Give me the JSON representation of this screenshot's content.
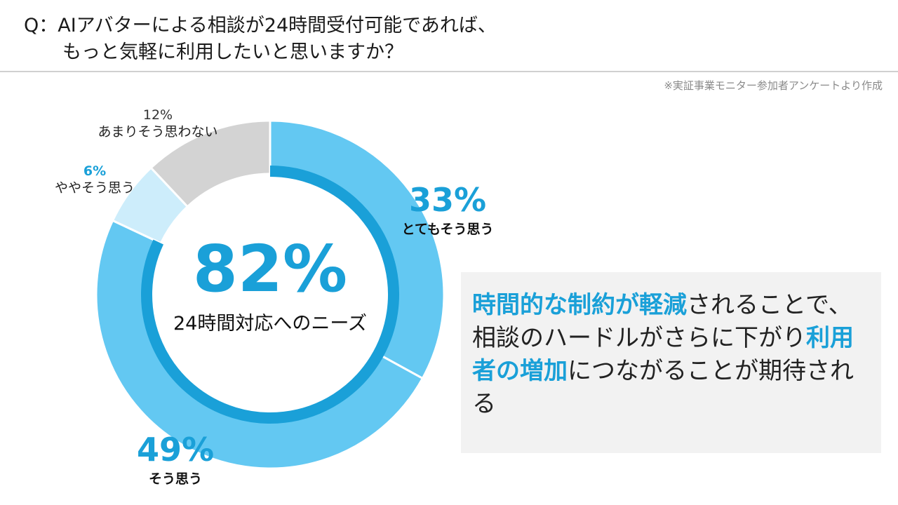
{
  "question": {
    "line1": "Q：AIアバターによる相談が24時間受付可能であれば、",
    "line2": "もっと気軽に利用したいと思いますか？"
  },
  "source_note": "※実証事業モニター参加者アンケートより作成",
  "chart_data": {
    "type": "pie",
    "style": "donut",
    "slices": [
      {
        "label": "とてもそう思う",
        "value": 33,
        "value_text": "33%",
        "color": "#63c8f2"
      },
      {
        "label": "そう思う",
        "value": 49,
        "value_text": "49%",
        "color": "#63c8f2"
      },
      {
        "label": "ややそう思う",
        "value": 6,
        "value_text": "6%",
        "color": "#cdedfb"
      },
      {
        "label": "あまりそう思わない",
        "value": 12,
        "value_text": "12%",
        "color": "#d3d3d3"
      }
    ],
    "inner_ring": {
      "value": 82,
      "color": "#1aa0d8"
    },
    "center": {
      "value_text": "82%",
      "caption": "24時間対応へのニーズ"
    }
  },
  "callout": {
    "segments": [
      {
        "text": "時間的な制約が軽減",
        "highlight": true
      },
      {
        "text": "されることで、相談のハードルがさらに下がり",
        "highlight": false
      },
      {
        "text": "利用者の増加",
        "highlight": true
      },
      {
        "text": "につながることが期待される",
        "highlight": false
      }
    ]
  }
}
